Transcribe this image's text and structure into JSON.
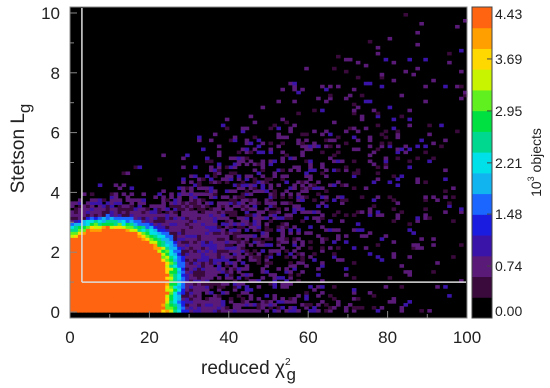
{
  "chart_data": {
    "type": "heatmap",
    "x_label": {
      "main": "reduced χ",
      "superscript": "2",
      "subscript": "g"
    },
    "y_label": {
      "main": "Stetson L",
      "subscript": "g"
    },
    "xlim": [
      0,
      100
    ],
    "ylim": [
      -0.2,
      10.2
    ],
    "x_ticks": [
      "0",
      "20",
      "40",
      "60",
      "80",
      "100"
    ],
    "x_tick_values": [
      0,
      20,
      40,
      60,
      80,
      100
    ],
    "y_ticks": [
      "0",
      "2",
      "4",
      "6",
      "8",
      "10"
    ],
    "y_tick_values": [
      0,
      2,
      4,
      6,
      8,
      10
    ],
    "colorbar": {
      "label_prefix": "10",
      "label_exp": "3",
      "label_suffix": " objects",
      "min": 0,
      "max": 4.43,
      "tick_labels": [
        "4.43",
        "3.69",
        "2.95",
        "2.21",
        "1.48",
        "0.74",
        "0.00"
      ],
      "tick_values": [
        4.43,
        3.69,
        2.95,
        2.21,
        1.48,
        0.74,
        0.0
      ],
      "colors": [
        "#000000",
        "#3a0a3c",
        "#5a1a78",
        "#3a14a8",
        "#1a1ce0",
        "#1a66ff",
        "#12b4f0",
        "#00e0e8",
        "#00d890",
        "#00e040",
        "#60f020",
        "#c8f400",
        "#ffd800",
        "#ffa000",
        "#ff6410"
      ]
    },
    "cut_lines": {
      "x_cut": 3.0,
      "y_cut": 1.0,
      "color": "#dddddd"
    },
    "density_model": {
      "description_free": true,
      "core_ridge_start": [
        0,
        0.6
      ],
      "peak_density_cap": 4.43
    },
    "background": "#000000"
  }
}
